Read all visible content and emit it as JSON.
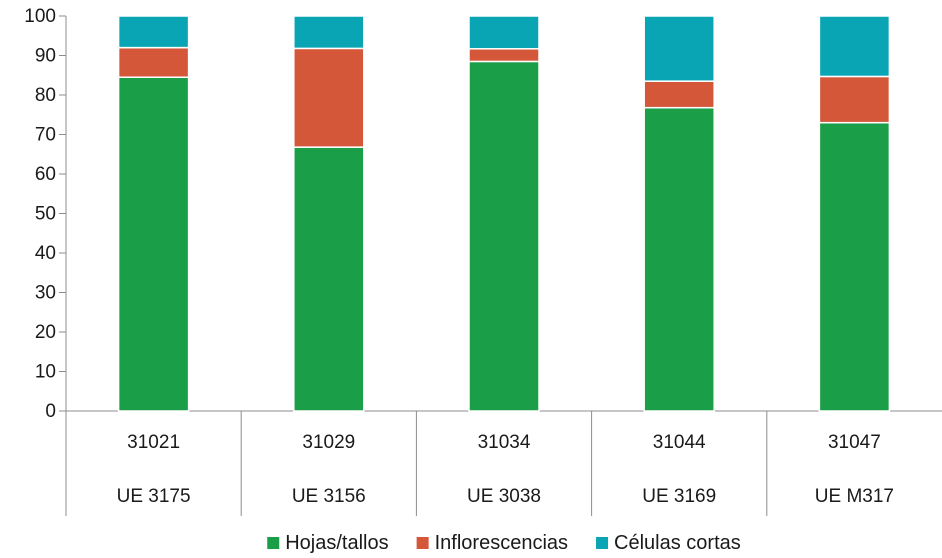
{
  "chart_data": {
    "type": "bar",
    "stacked": true,
    "categories": [
      "31021",
      "31029",
      "31034",
      "31044",
      "31047"
    ],
    "subcategories": [
      "UE 3175",
      "UE 3156",
      "UE 3038",
      "UE 3169",
      "UE M317"
    ],
    "series": [
      {
        "name": "Hojas/tallos",
        "color": "#1a9e48",
        "values": [
          84.5,
          66.8,
          88.5,
          76.8,
          73.0
        ]
      },
      {
        "name": "Inflorescencias",
        "color": "#d4573a",
        "values": [
          7.5,
          25.0,
          3.2,
          6.7,
          11.7
        ]
      },
      {
        "name": "Células cortas",
        "color": "#0aa5b5",
        "values": [
          8.0,
          8.2,
          8.3,
          16.5,
          15.3
        ]
      }
    ],
    "ylim": [
      0,
      100
    ],
    "yticks": [
      0,
      10,
      20,
      30,
      40,
      50,
      60,
      70,
      80,
      90,
      100
    ],
    "grid": false,
    "legend_position": "bottom",
    "title": "",
    "xlabel": "",
    "ylabel": ""
  }
}
